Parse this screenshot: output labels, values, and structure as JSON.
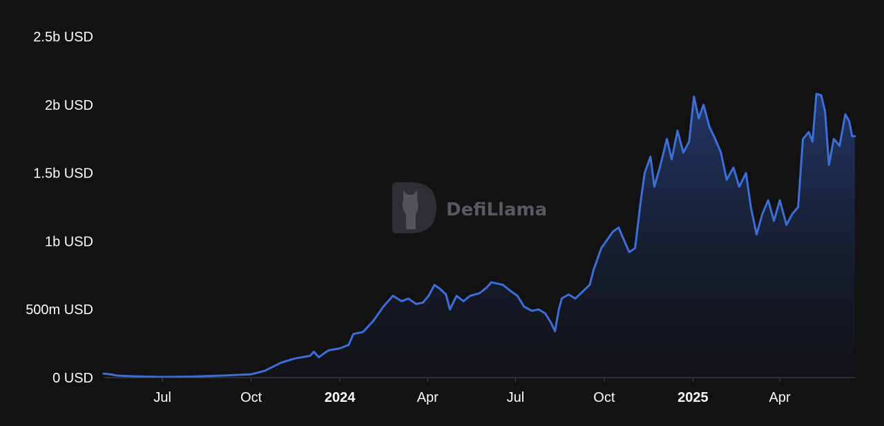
{
  "chart_data": {
    "type": "area",
    "title": "",
    "xlabel": "",
    "ylabel": "",
    "y_unit": "USD",
    "ylim": [
      0,
      2500000000
    ],
    "yticks": [
      {
        "value": 0,
        "label": "0 USD"
      },
      {
        "value": 500000000,
        "label": "500m USD"
      },
      {
        "value": 1000000000,
        "label": "1b USD"
      },
      {
        "value": 1500000000,
        "label": "1.5b USD"
      },
      {
        "value": 2000000000,
        "label": "2b USD"
      },
      {
        "value": 2500000000,
        "label": "2.5b USD"
      }
    ],
    "xlim": [
      "2023-05-01",
      "2025-06-18"
    ],
    "xticks": [
      {
        "date": "2023-07-01",
        "label": "Jul",
        "bold": false
      },
      {
        "date": "2023-10-01",
        "label": "Oct",
        "bold": false
      },
      {
        "date": "2024-01-01",
        "label": "2024",
        "bold": true
      },
      {
        "date": "2024-04-01",
        "label": "Apr",
        "bold": false
      },
      {
        "date": "2024-07-01",
        "label": "Jul",
        "bold": false
      },
      {
        "date": "2024-10-01",
        "label": "Oct",
        "bold": false
      },
      {
        "date": "2025-01-01",
        "label": "2025",
        "bold": true
      },
      {
        "date": "2025-04-01",
        "label": "Apr",
        "bold": false
      }
    ],
    "grid": false,
    "legend": "none",
    "line_color": "#3d6fd6",
    "series": [
      {
        "points": [
          [
            "2023-05-01",
            30000000
          ],
          [
            "2023-05-08",
            25000000
          ],
          [
            "2023-05-15",
            15000000
          ],
          [
            "2023-06-01",
            10000000
          ],
          [
            "2023-07-01",
            5000000
          ],
          [
            "2023-08-01",
            8000000
          ],
          [
            "2023-09-01",
            15000000
          ],
          [
            "2023-10-01",
            25000000
          ],
          [
            "2023-10-15",
            50000000
          ],
          [
            "2023-11-01",
            110000000
          ],
          [
            "2023-11-15",
            140000000
          ],
          [
            "2023-12-01",
            160000000
          ],
          [
            "2023-12-05",
            190000000
          ],
          [
            "2023-12-10",
            150000000
          ],
          [
            "2023-12-20",
            200000000
          ],
          [
            "2024-01-01",
            215000000
          ],
          [
            "2024-01-10",
            240000000
          ],
          [
            "2024-01-15",
            320000000
          ],
          [
            "2024-01-25",
            335000000
          ],
          [
            "2024-02-05",
            420000000
          ],
          [
            "2024-02-15",
            520000000
          ],
          [
            "2024-02-25",
            600000000
          ],
          [
            "2024-03-05",
            560000000
          ],
          [
            "2024-03-12",
            580000000
          ],
          [
            "2024-03-20",
            540000000
          ],
          [
            "2024-03-27",
            550000000
          ],
          [
            "2024-04-02",
            600000000
          ],
          [
            "2024-04-08",
            680000000
          ],
          [
            "2024-04-14",
            650000000
          ],
          [
            "2024-04-20",
            610000000
          ],
          [
            "2024-04-24",
            500000000
          ],
          [
            "2024-05-01",
            600000000
          ],
          [
            "2024-05-08",
            560000000
          ],
          [
            "2024-05-15",
            600000000
          ],
          [
            "2024-05-25",
            620000000
          ],
          [
            "2024-06-01",
            660000000
          ],
          [
            "2024-06-06",
            700000000
          ],
          [
            "2024-06-12",
            690000000
          ],
          [
            "2024-06-18",
            680000000
          ],
          [
            "2024-06-25",
            640000000
          ],
          [
            "2024-07-03",
            600000000
          ],
          [
            "2024-07-10",
            520000000
          ],
          [
            "2024-07-18",
            490000000
          ],
          [
            "2024-07-25",
            500000000
          ],
          [
            "2024-08-01",
            470000000
          ],
          [
            "2024-08-07",
            400000000
          ],
          [
            "2024-08-11",
            340000000
          ],
          [
            "2024-08-15",
            500000000
          ],
          [
            "2024-08-18",
            580000000
          ],
          [
            "2024-08-25",
            610000000
          ],
          [
            "2024-09-01",
            580000000
          ],
          [
            "2024-09-10",
            640000000
          ],
          [
            "2024-09-16",
            680000000
          ],
          [
            "2024-09-20",
            790000000
          ],
          [
            "2024-09-28",
            950000000
          ],
          [
            "2024-10-05",
            1020000000
          ],
          [
            "2024-10-10",
            1070000000
          ],
          [
            "2024-10-16",
            1100000000
          ],
          [
            "2024-10-22",
            1000000000
          ],
          [
            "2024-10-27",
            920000000
          ],
          [
            "2024-11-02",
            950000000
          ],
          [
            "2024-11-08",
            1300000000
          ],
          [
            "2024-11-12",
            1500000000
          ],
          [
            "2024-11-18",
            1620000000
          ],
          [
            "2024-11-22",
            1400000000
          ],
          [
            "2024-11-28",
            1550000000
          ],
          [
            "2024-12-05",
            1750000000
          ],
          [
            "2024-12-10",
            1600000000
          ],
          [
            "2024-12-16",
            1810000000
          ],
          [
            "2024-12-22",
            1650000000
          ],
          [
            "2024-12-28",
            1730000000
          ],
          [
            "2025-01-02",
            2060000000
          ],
          [
            "2025-01-07",
            1900000000
          ],
          [
            "2025-01-12",
            2000000000
          ],
          [
            "2025-01-18",
            1840000000
          ],
          [
            "2025-01-24",
            1750000000
          ],
          [
            "2025-01-30",
            1650000000
          ],
          [
            "2025-02-05",
            1450000000
          ],
          [
            "2025-02-12",
            1540000000
          ],
          [
            "2025-02-18",
            1400000000
          ],
          [
            "2025-02-25",
            1500000000
          ],
          [
            "2025-03-02",
            1250000000
          ],
          [
            "2025-03-08",
            1050000000
          ],
          [
            "2025-03-14",
            1200000000
          ],
          [
            "2025-03-20",
            1300000000
          ],
          [
            "2025-03-26",
            1150000000
          ],
          [
            "2025-04-01",
            1300000000
          ],
          [
            "2025-04-08",
            1120000000
          ],
          [
            "2025-04-14",
            1200000000
          ],
          [
            "2025-04-20",
            1250000000
          ],
          [
            "2025-04-25",
            1750000000
          ],
          [
            "2025-05-01",
            1800000000
          ],
          [
            "2025-05-05",
            1730000000
          ],
          [
            "2025-05-09",
            2080000000
          ],
          [
            "2025-05-14",
            2070000000
          ],
          [
            "2025-05-18",
            1950000000
          ],
          [
            "2025-05-22",
            1560000000
          ],
          [
            "2025-05-27",
            1750000000
          ],
          [
            "2025-06-02",
            1700000000
          ],
          [
            "2025-06-08",
            1930000000
          ],
          [
            "2025-06-12",
            1880000000
          ],
          [
            "2025-06-15",
            1770000000
          ],
          [
            "2025-06-18",
            1770000000
          ]
        ]
      }
    ]
  },
  "watermark": {
    "text": "DefiLlama"
  }
}
